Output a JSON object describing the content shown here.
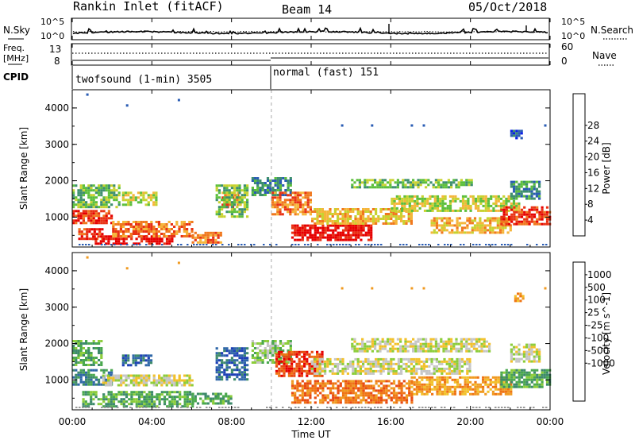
{
  "header": {
    "station": "Rankin Inlet (fitACF)",
    "beam": "Beam 14",
    "date": "05/Oct/2018"
  },
  "noise_panel": {
    "left_label": "N.Sky",
    "right_label": "N.Search",
    "tick_high": "10^5",
    "tick_low": "10^0",
    "right_tick_high": "10^5",
    "right_tick_low": "10^0"
  },
  "freq_panel": {
    "left_label_line1": "Freq.",
    "left_label_line2": "[MHz]",
    "left_tick_high": "13",
    "left_tick_low": "8",
    "right_label": "Nave",
    "right_tick_high": "60",
    "right_tick_low": "0",
    "cpid_label": "CPID"
  },
  "cpid": [
    {
      "label": "twofsound (1-min) 3505",
      "start_hour": 0
    },
    {
      "label": "normal (fast) 151",
      "start_hour": 10
    }
  ],
  "x_axis": {
    "title": "Time UT",
    "ticks": [
      "00:00",
      "04:00",
      "08:00",
      "12:00",
      "16:00",
      "20:00",
      "00:00"
    ],
    "range_hours": [
      0,
      24
    ]
  },
  "power_panel": {
    "ylabel": "Slant Range [km]",
    "yticks": [
      "1000",
      "2000",
      "3000",
      "4000"
    ],
    "colorbar_title": "Power [dB]",
    "colorbar_ticks": [
      "4",
      "8",
      "12",
      "16",
      "20",
      "24",
      "28"
    ],
    "colors": [
      "#0a1ee6",
      "#2a5cb4",
      "#3d8f6e",
      "#5cbf3c",
      "#c8d230",
      "#f5b53a",
      "#f0781e",
      "#e83214",
      "#e60000"
    ]
  },
  "velocity_panel": {
    "ylabel": "Slant Range [km]",
    "yticks": [
      "1000",
      "2000",
      "3000",
      "4000"
    ],
    "colorbar_title": "Velocity [m s^-1]",
    "colorbar_ticks": [
      "1000",
      "500",
      "100",
      "25",
      "-25",
      "-100",
      "-500",
      "-1000"
    ],
    "colors": [
      "#1d3fb6",
      "#2f67a8",
      "#3d8a6a",
      "#4aa84e",
      "#8ccd3a",
      "#c6c6c6",
      "#f2c12b",
      "#f09a20",
      "#ef7414",
      "#e84a12",
      "#e60000"
    ]
  },
  "chart_data": {
    "type": "heatmap",
    "x_unit": "hours UT",
    "y_unit": "km",
    "ylim": [
      180,
      4500
    ],
    "power_regions": [
      {
        "x0": 0.0,
        "x1": 2.0,
        "y0": 850,
        "y1": 1200,
        "level": 7
      },
      {
        "x0": 0.3,
        "x1": 1.5,
        "y0": 400,
        "y1": 700,
        "level": 7
      },
      {
        "x0": 1.0,
        "x1": 5.0,
        "y0": 300,
        "y1": 500,
        "level": 8
      },
      {
        "x0": 2.0,
        "x1": 6.0,
        "y0": 500,
        "y1": 900,
        "level": 6
      },
      {
        "x0": 0.0,
        "x1": 2.3,
        "y0": 1300,
        "y1": 1900,
        "level": 3
      },
      {
        "x0": 2.5,
        "x1": 4.2,
        "y0": 1350,
        "y1": 1700,
        "level": 4
      },
      {
        "x0": 6.0,
        "x1": 7.5,
        "y0": 300,
        "y1": 600,
        "level": 6
      },
      {
        "x0": 7.5,
        "x1": 8.5,
        "y0": 1300,
        "y1": 1700,
        "level": 6
      },
      {
        "x0": 7.2,
        "x1": 8.8,
        "y0": 1000,
        "y1": 1900,
        "level": 3
      },
      {
        "x0": 9.0,
        "x1": 11.0,
        "y0": 1600,
        "y1": 2100,
        "level": 2
      },
      {
        "x0": 10.0,
        "x1": 12.0,
        "y0": 1100,
        "y1": 1700,
        "level": 6
      },
      {
        "x0": 11.0,
        "x1": 15.0,
        "y0": 400,
        "y1": 800,
        "level": 8
      },
      {
        "x0": 12.0,
        "x1": 17.0,
        "y0": 850,
        "y1": 1250,
        "level": 5
      },
      {
        "x0": 14.0,
        "x1": 20.0,
        "y0": 1800,
        "y1": 2050,
        "level": 3
      },
      {
        "x0": 16.0,
        "x1": 22.5,
        "y0": 1200,
        "y1": 1600,
        "level": 4
      },
      {
        "x0": 18.0,
        "x1": 22.0,
        "y0": 600,
        "y1": 1000,
        "level": 5
      },
      {
        "x0": 21.5,
        "x1": 24.0,
        "y0": 800,
        "y1": 1300,
        "level": 7
      },
      {
        "x0": 22.0,
        "x1": 23.5,
        "y0": 1500,
        "y1": 2000,
        "level": 2
      },
      {
        "x0": 22.0,
        "x1": 22.6,
        "y0": 3200,
        "y1": 3400,
        "level": 1
      }
    ],
    "velocity_regions": [
      {
        "x0": 0.0,
        "x1": 2.0,
        "y0": 900,
        "y1": 1300,
        "level": 2
      },
      {
        "x0": 0.0,
        "x1": 1.5,
        "y0": 1400,
        "y1": 2100,
        "level": 3
      },
      {
        "x0": 1.5,
        "x1": 6.0,
        "y0": 850,
        "y1": 1150,
        "level": 5
      },
      {
        "x0": 0.5,
        "x1": 6.0,
        "y0": 300,
        "y1": 700,
        "level": 3
      },
      {
        "x0": 2.5,
        "x1": 4.0,
        "y0": 1400,
        "y1": 1700,
        "level": 1
      },
      {
        "x0": 6.0,
        "x1": 8.0,
        "y0": 350,
        "y1": 650,
        "level": 3
      },
      {
        "x0": 7.2,
        "x1": 8.8,
        "y0": 1000,
        "y1": 1900,
        "level": 1
      },
      {
        "x0": 9.0,
        "x1": 11.0,
        "y0": 1500,
        "y1": 2100,
        "level": 4
      },
      {
        "x0": 10.2,
        "x1": 12.5,
        "y0": 1100,
        "y1": 1800,
        "level": 9
      },
      {
        "x0": 11.0,
        "x1": 17.0,
        "y0": 400,
        "y1": 1000,
        "level": 8
      },
      {
        "x0": 14.0,
        "x1": 21.0,
        "y0": 1800,
        "y1": 2150,
        "level": 5
      },
      {
        "x0": 12.0,
        "x1": 20.0,
        "y0": 1200,
        "y1": 1600,
        "level": 5
      },
      {
        "x0": 17.0,
        "x1": 22.0,
        "y0": 600,
        "y1": 1100,
        "level": 7
      },
      {
        "x0": 21.5,
        "x1": 24.0,
        "y0": 800,
        "y1": 1300,
        "level": 3
      },
      {
        "x0": 22.0,
        "x1": 23.5,
        "y0": 1500,
        "y1": 2000,
        "level": 5
      },
      {
        "x0": 22.2,
        "x1": 22.6,
        "y0": 3200,
        "y1": 3400,
        "level": 7
      }
    ],
    "isolated_echoes": [
      {
        "x": 0.7,
        "y": 4400
      },
      {
        "x": 2.7,
        "y": 4100
      },
      {
        "x": 5.3,
        "y": 4250
      },
      {
        "x": 13.5,
        "y": 3550
      },
      {
        "x": 15.0,
        "y": 3550
      },
      {
        "x": 17.0,
        "y": 3550
      },
      {
        "x": 17.6,
        "y": 3550
      },
      {
        "x": 23.7,
        "y": 3550
      }
    ]
  }
}
